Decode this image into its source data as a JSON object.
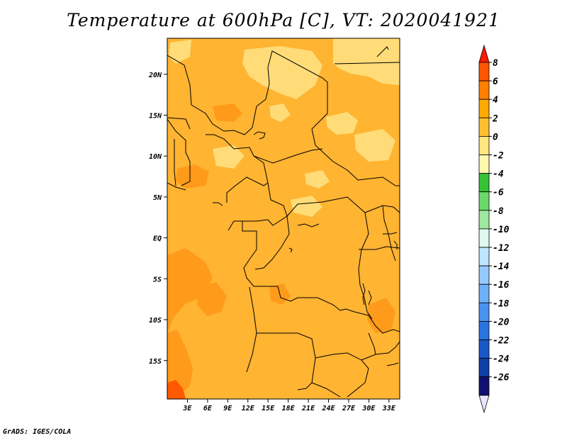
{
  "title": "Temperature at 600hPa [C], VT: 2020041921",
  "credit": "GrADS: IGES/COLA",
  "map": {
    "lon_range": [
      0,
      34.6
    ],
    "lat_range": [
      -19.7,
      24.4
    ],
    "lon_ticks": [
      {
        "value": 3,
        "label": "3E"
      },
      {
        "value": 6,
        "label": "6E"
      },
      {
        "value": 9,
        "label": "9E"
      },
      {
        "value": 12,
        "label": "12E"
      },
      {
        "value": 15,
        "label": "15E"
      },
      {
        "value": 18,
        "label": "18E"
      },
      {
        "value": 21,
        "label": "21E"
      },
      {
        "value": 24,
        "label": "24E"
      },
      {
        "value": 27,
        "label": "27E"
      },
      {
        "value": 30,
        "label": "30E"
      },
      {
        "value": 33,
        "label": "33E"
      }
    ],
    "lat_ticks": [
      {
        "value": 20,
        "label": "20N"
      },
      {
        "value": 15,
        "label": "15N"
      },
      {
        "value": 10,
        "label": "10N"
      },
      {
        "value": 5,
        "label": "5N"
      },
      {
        "value": 0,
        "label": "EQ"
      },
      {
        "value": -5,
        "label": "5S"
      },
      {
        "value": -10,
        "label": "10S"
      },
      {
        "value": -15,
        "label": "15S"
      }
    ]
  },
  "colorbar": {
    "levels": [
      "8",
      "6",
      "4",
      "2",
      "0",
      "-2",
      "-4",
      "-6",
      "-8",
      "-10",
      "-12",
      "-14",
      "-16",
      "-18",
      "-20",
      "-22",
      "-24",
      "-26"
    ],
    "colors": [
      "#ff1a00",
      "#ff5500",
      "#ff8000",
      "#ffaa00",
      "#ffc030",
      "#ffe680",
      "#fff8b0",
      "#36c236",
      "#6ad86a",
      "#a0e8a0",
      "#e0f8f0",
      "#c0e6ff",
      "#96caff",
      "#6fb0f8",
      "#4a92ef",
      "#2a74e0",
      "#1a58c8",
      "#0e3ea6",
      "#101070",
      "#e6e6ff"
    ]
  },
  "field_colors": {
    "base": "#ffb432",
    "cool": "#ffdc78",
    "warm": "#ff9a1a",
    "hot": "#ff5a00",
    "country_borders": "#000000"
  }
}
